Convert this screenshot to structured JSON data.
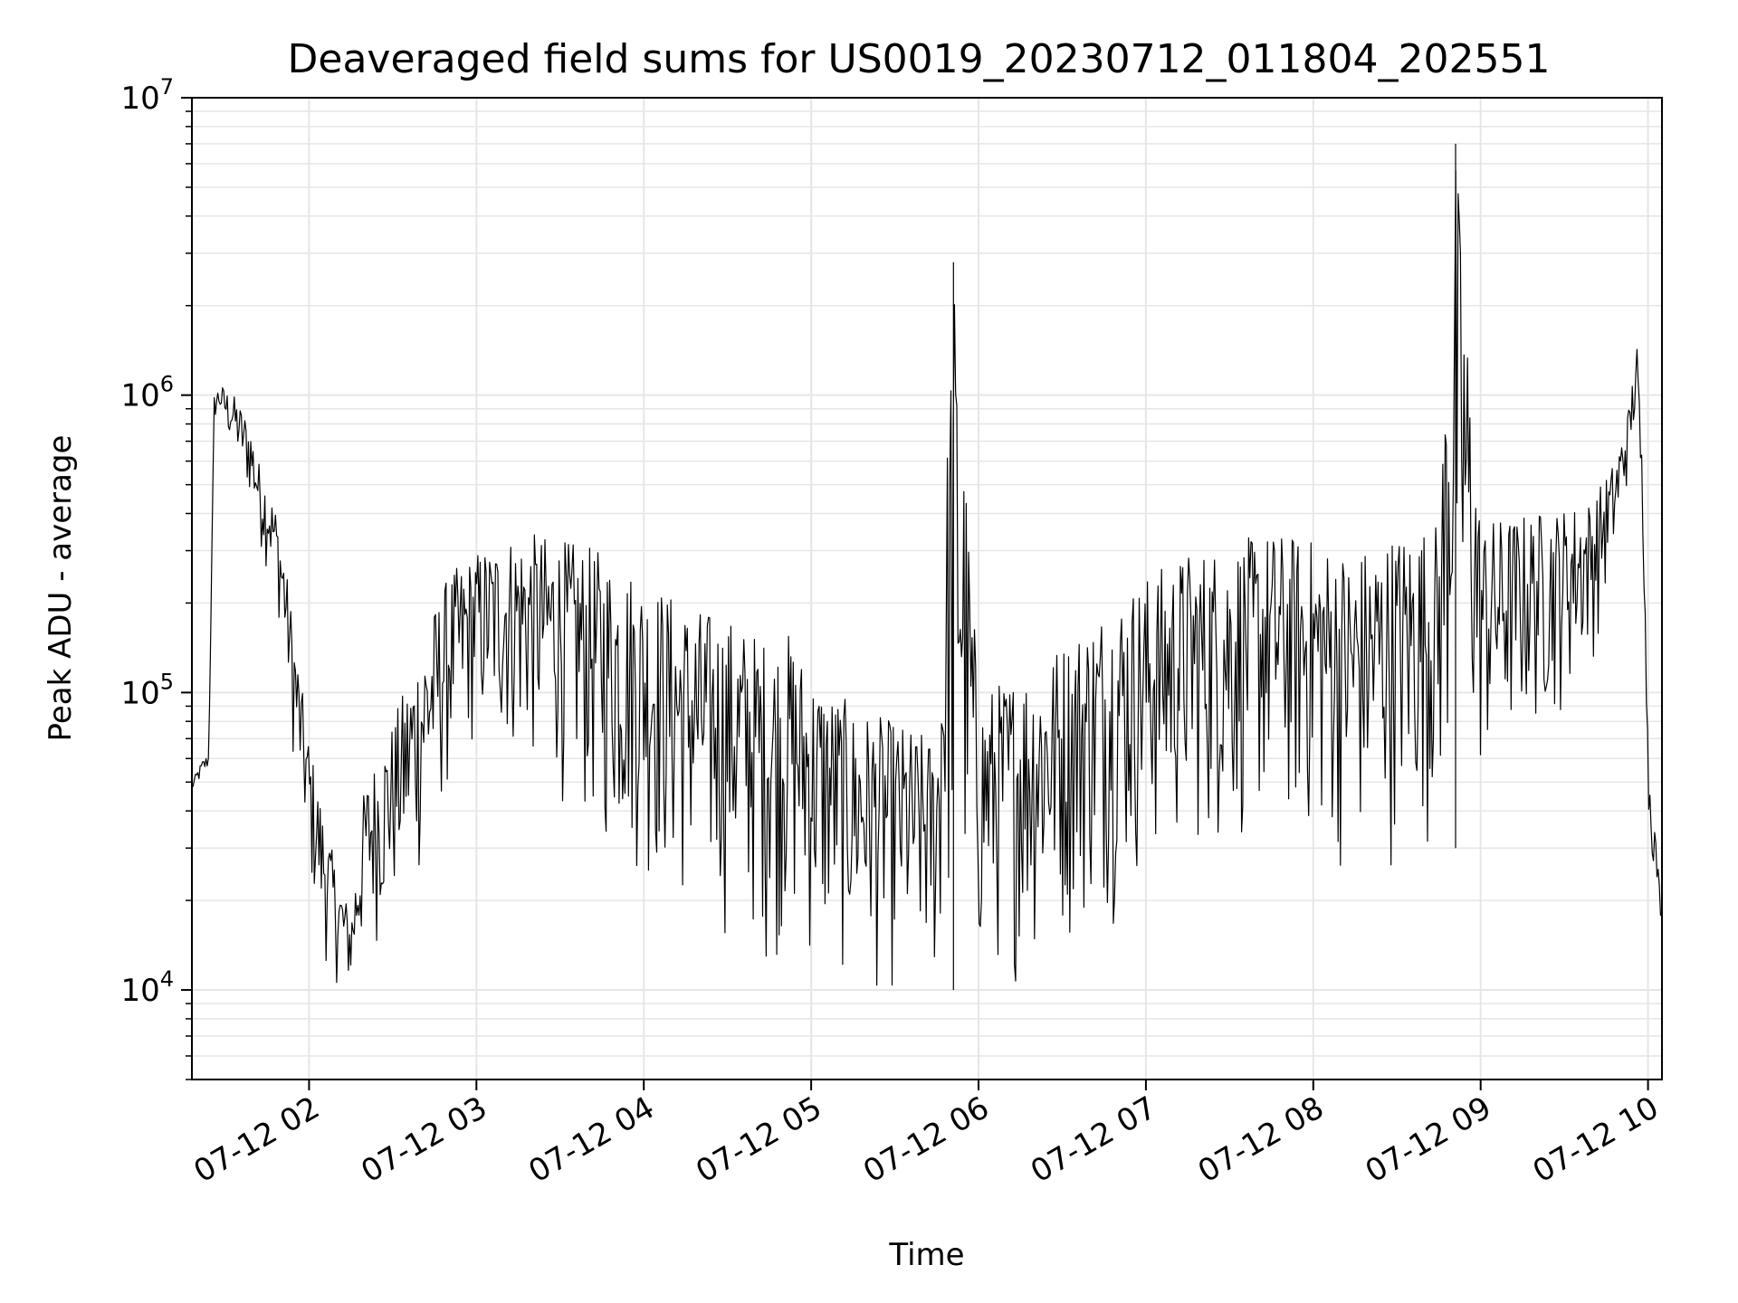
{
  "chart_data": {
    "type": "line",
    "title": "Deaveraged field sums for US0019_20230712_011804_202551",
    "xlabel": "Time",
    "ylabel": "Peak ADU - average",
    "yscale": "log",
    "ylim": [
      5000,
      10000000
    ],
    "xlim": [
      "2023-07-12 01:18",
      "2023-07-12 10:05"
    ],
    "grid": true,
    "line_color": "#000000",
    "grid_color": "#e6e6e6",
    "x_ticks": [
      {
        "value": "2023-07-12 02:00",
        "label": "07-12 02"
      },
      {
        "value": "2023-07-12 03:00",
        "label": "07-12 03"
      },
      {
        "value": "2023-07-12 04:00",
        "label": "07-12 04"
      },
      {
        "value": "2023-07-12 05:00",
        "label": "07-12 05"
      },
      {
        "value": "2023-07-12 06:00",
        "label": "07-12 06"
      },
      {
        "value": "2023-07-12 07:00",
        "label": "07-12 07"
      },
      {
        "value": "2023-07-12 08:00",
        "label": "07-12 08"
      },
      {
        "value": "2023-07-12 09:00",
        "label": "07-12 09"
      },
      {
        "value": "2023-07-12 10:00",
        "label": "07-12 10"
      }
    ],
    "y_ticks": [
      {
        "value": 10000,
        "base": "10",
        "exp": "4"
      },
      {
        "value": 100000,
        "base": "10",
        "exp": "5"
      },
      {
        "value": 1000000,
        "base": "10",
        "exp": "6"
      },
      {
        "value": 10000000,
        "base": "10",
        "exp": "7"
      }
    ],
    "series": [
      {
        "x": [
          "2023-07-12 01:18",
          "2023-07-12 01:20",
          "2023-07-12 01:22",
          "2023-07-12 01:24",
          "2023-07-12 01:26",
          "2023-07-12 01:28",
          "2023-07-12 01:30",
          "2023-07-12 01:33",
          "2023-07-12 01:36",
          "2023-07-12 01:39",
          "2023-07-12 01:42",
          "2023-07-12 01:45",
          "2023-07-12 01:48",
          "2023-07-12 01:51",
          "2023-07-12 01:54",
          "2023-07-12 01:57",
          "2023-07-12 02:00",
          "2023-07-12 02:05",
          "2023-07-12 02:10",
          "2023-07-12 02:15",
          "2023-07-12 02:20",
          "2023-07-12 02:30",
          "2023-07-12 02:40",
          "2023-07-12 02:50",
          "2023-07-12 03:00",
          "2023-07-12 03:15",
          "2023-07-12 03:30",
          "2023-07-12 03:45",
          "2023-07-12 04:00",
          "2023-07-12 04:15",
          "2023-07-12 04:30",
          "2023-07-12 04:45",
          "2023-07-12 04:52",
          "2023-07-12 05:00",
          "2023-07-12 05:15",
          "2023-07-12 05:30",
          "2023-07-12 05:45",
          "2023-07-12 05:51",
          "2023-07-12 06:00",
          "2023-07-12 06:15",
          "2023-07-12 06:30",
          "2023-07-12 06:45",
          "2023-07-12 07:00",
          "2023-07-12 07:15",
          "2023-07-12 07:30",
          "2023-07-12 07:45",
          "2023-07-12 08:00",
          "2023-07-12 08:15",
          "2023-07-12 08:30",
          "2023-07-12 08:45",
          "2023-07-12 08:51",
          "2023-07-12 09:00",
          "2023-07-12 09:15",
          "2023-07-12 09:30",
          "2023-07-12 09:40",
          "2023-07-12 09:48",
          "2023-07-12 09:53",
          "2023-07-12 09:56",
          "2023-07-12 09:59",
          "2023-07-12 10:00",
          "2023-07-12 10:02",
          "2023-07-12 10:05"
        ],
        "y": [
          50000,
          55000,
          60000,
          62000,
          1000000,
          1100000,
          1050000,
          1000000,
          900000,
          800000,
          600000,
          500000,
          420000,
          300000,
          180000,
          110000,
          70000,
          40000,
          25000,
          18000,
          50000,
          80000,
          150000,
          250000,
          300000,
          350000,
          330000,
          300000,
          250000,
          200000,
          180000,
          150000,
          160000,
          120000,
          90000,
          80000,
          70000,
          2800000,
          100000,
          120000,
          150000,
          200000,
          250000,
          300000,
          320000,
          350000,
          330000,
          300000,
          350000,
          380000,
          7000000,
          380000,
          400000,
          420000,
          450000,
          600000,
          900000,
          1500000,
          400000,
          60000,
          40000,
          18000
        ],
        "lower": [
          45000,
          48000,
          50000,
          55000,
          800000,
          800000,
          700000,
          600000,
          500000,
          400000,
          300000,
          250000,
          200000,
          120000,
          60000,
          35000,
          20000,
          12000,
          10000,
          9000,
          12000,
          15000,
          20000,
          40000,
          60000,
          50000,
          40000,
          25000,
          20000,
          15000,
          13000,
          11000,
          12000,
          10000,
          9000,
          8500,
          8000,
          10000,
          9000,
          10000,
          12000,
          15000,
          20000,
          25000,
          25000,
          30000,
          25000,
          20000,
          25000,
          30000,
          30000,
          40000,
          60000,
          80000,
          120000,
          250000,
          500000,
          800000,
          150000,
          35000,
          25000,
          16000
        ]
      }
    ]
  }
}
